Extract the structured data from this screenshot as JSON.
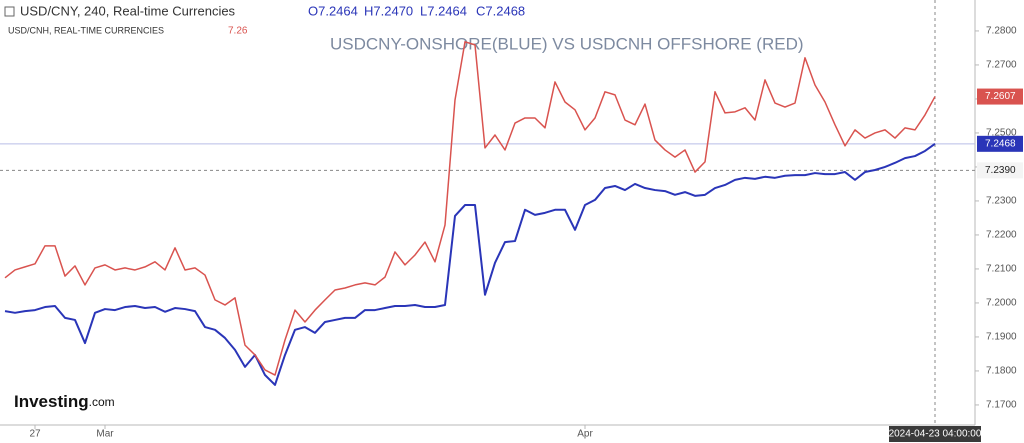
{
  "chart_data": {
    "type": "line",
    "title": "USDCNY-ONSHORE(BLUE) VS USDCNH OFFSHORE (RED)",
    "legend_main": "USD/CNY, 240, Real-time Currencies",
    "ohlc": [
      "O7.2464",
      "H7.2470",
      "L7.2464",
      "C7.2468"
    ],
    "legend_second": "USD/CNH, REAL-TIME CURRENCIES",
    "legend_second_value": "7.26",
    "logo": "Investing",
    "logo_suffix": ".com",
    "categories": [
      null,
      null,
      null,
      "27",
      null,
      null,
      null,
      null,
      null,
      null,
      "Mar",
      null,
      null,
      null,
      null,
      null,
      null,
      null,
      null,
      null,
      null,
      null,
      null,
      null,
      null,
      null,
      null,
      null,
      null,
      null,
      null,
      null,
      null,
      null,
      null,
      null,
      null,
      null,
      null,
      null,
      null,
      null,
      null,
      null,
      null,
      null,
      null,
      null,
      null,
      null,
      null,
      null,
      null,
      null,
      null,
      null,
      null,
      null,
      "Apr",
      null,
      null,
      null,
      null,
      null,
      null,
      null,
      null,
      null,
      null,
      null,
      null,
      null,
      null,
      null,
      null,
      null,
      null,
      null,
      null,
      null,
      null,
      null,
      null,
      null,
      null,
      null,
      null,
      null,
      null,
      null,
      null,
      null,
      null,
      null
    ],
    "series": [
      {
        "name": "USD/CNY",
        "color": "#2a35b8",
        "values": [
          7.1976,
          7.1971,
          7.1976,
          7.1979,
          7.1988,
          7.1991,
          7.1956,
          7.195,
          7.1882,
          7.1971,
          7.1982,
          7.1979,
          7.1988,
          7.1991,
          7.1985,
          7.1988,
          7.1974,
          7.1985,
          7.1982,
          7.1976,
          7.1929,
          7.1921,
          7.1897,
          7.1862,
          7.1812,
          7.1847,
          7.1788,
          7.1759,
          7.1847,
          7.1921,
          7.1929,
          7.1912,
          7.1944,
          7.195,
          7.1956,
          7.1956,
          7.1979,
          7.1979,
          7.1985,
          7.1991,
          7.1991,
          7.1994,
          7.1988,
          7.1988,
          7.1994,
          7.2256,
          7.2288,
          7.2288,
          7.2024,
          7.2118,
          7.2179,
          7.2182,
          7.2274,
          7.2259,
          7.2265,
          7.2274,
          7.2274,
          7.2215,
          7.2288,
          7.2303,
          7.2338,
          7.2344,
          7.2332,
          7.235,
          7.2338,
          7.2332,
          7.2329,
          7.2318,
          7.2326,
          7.2315,
          7.2318,
          7.2338,
          7.2347,
          7.2362,
          7.2368,
          7.2365,
          7.2371,
          7.2368,
          7.2374,
          7.2376,
          7.2376,
          7.2382,
          7.2379,
          7.2379,
          7.2385,
          7.2362,
          7.2385,
          7.2391,
          7.24,
          7.2412,
          7.2426,
          7.2432,
          7.2447,
          7.2468
        ]
      },
      {
        "name": "USD/CNH",
        "color": "#d9534f",
        "values": [
          7.2074,
          7.2097,
          7.2106,
          7.2115,
          7.2168,
          7.2168,
          7.2079,
          7.2109,
          7.2053,
          7.2103,
          7.2112,
          7.2097,
          7.2103,
          7.2097,
          7.2106,
          7.2121,
          7.2097,
          7.2162,
          7.2097,
          7.2103,
          7.2082,
          7.2009,
          7.1994,
          7.2015,
          7.1876,
          7.1847,
          7.1803,
          7.1788,
          7.1891,
          7.1979,
          7.1944,
          7.1979,
          7.2009,
          7.2038,
          7.2044,
          7.2053,
          7.2059,
          7.2053,
          7.2076,
          7.215,
          7.2112,
          7.2141,
          7.2179,
          7.2121,
          7.2229,
          7.2597,
          7.2768,
          7.2759,
          7.2456,
          7.2494,
          7.245,
          7.2529,
          7.2544,
          7.2544,
          7.2515,
          7.265,
          7.2591,
          7.2568,
          7.2509,
          7.2544,
          7.2621,
          7.2612,
          7.2538,
          7.2524,
          7.2585,
          7.2479,
          7.245,
          7.2429,
          7.245,
          7.2385,
          7.2415,
          7.2621,
          7.2559,
          7.2562,
          7.2574,
          7.2538,
          7.2656,
          7.2588,
          7.2576,
          7.2588,
          7.2721,
          7.2641,
          7.2591,
          7.2524,
          7.2462,
          7.2509,
          7.2485,
          7.25,
          7.2509,
          7.2485,
          7.2515,
          7.2509,
          7.2553,
          7.2607
        ]
      }
    ],
    "ylim": [
      7.1641,
      7.2891
    ],
    "yticks": [
      {
        "value": 7.17,
        "label": "7.1700"
      },
      {
        "value": 7.18,
        "label": "7.1800"
      },
      {
        "value": 7.19,
        "label": "7.1900"
      },
      {
        "value": 7.2,
        "label": "7.2000"
      },
      {
        "value": 7.21,
        "label": "7.2100"
      },
      {
        "value": 7.22,
        "label": "7.2200"
      },
      {
        "value": 7.23,
        "label": "7.2300"
      },
      {
        "value": 7.24,
        "label": "7.2400"
      },
      {
        "value": 7.25,
        "label": "7.2500"
      },
      {
        "value": 7.26,
        "label": "7.2600"
      },
      {
        "value": 7.27,
        "label": "7.2700"
      },
      {
        "value": 7.28,
        "label": "7.2800"
      }
    ],
    "crosshair": {
      "value": 7.239,
      "label": "7.2390",
      "date": "2024-04-23 04:00:00"
    }
  }
}
